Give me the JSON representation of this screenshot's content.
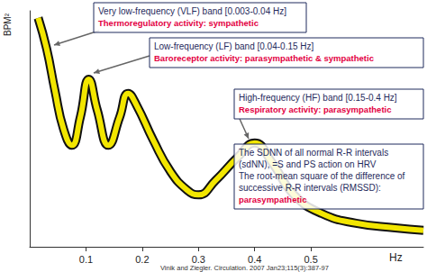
{
  "chart_data": {
    "type": "line",
    "x": [
      0.015,
      0.03,
      0.045,
      0.06,
      0.075,
      0.09,
      0.105,
      0.12,
      0.14,
      0.16,
      0.175,
      0.19,
      0.22,
      0.25,
      0.28,
      0.3,
      0.33,
      0.37,
      0.4,
      0.43,
      0.47,
      0.52,
      0.58,
      0.65,
      0.7
    ],
    "values": [
      97,
      84,
      66,
      50,
      43,
      55,
      71,
      58,
      43,
      55,
      65,
      60,
      45,
      32,
      24,
      22,
      28,
      38,
      44,
      36,
      22,
      14,
      10,
      8,
      7
    ],
    "color": "#f2e600",
    "xlim": [
      0,
      0.7
    ],
    "ylim": [
      0,
      100
    ],
    "xticks": [
      0.1,
      0.2,
      0.3,
      0.4,
      0.5
    ],
    "tick_labels": "x",
    "grid": false,
    "x_label": "Hz",
    "y_label": "BPM²",
    "annotations": [
      {
        "lines": [
          "Very low-frequency (VLF) band [0.003-0.04 Hz]"
        ],
        "note": "Thermoregulatory activity: sympathetic"
      },
      {
        "lines": [
          "Low-frequency (LF) band [0.04-0.15 Hz]"
        ],
        "note": "Baroreceptor activity: parasympathetic & sympathetic"
      },
      {
        "lines": [
          "High-frequency (HF) band [0.15-0.4 Hz]"
        ],
        "note": "Respiratory activity: parasympathetic"
      },
      {
        "lines": [
          "The SDNN of all normal R-R intervals",
          "(sdNN), =S and PS action on HRV",
          "The root-mean square of the difference of",
          "successive R-R intervals (RMSSD):"
        ],
        "note": "parasympathetic"
      }
    ],
    "source": "Vinik and Ziegler. Circulation. 2007 Jan23;115(3):387-97"
  }
}
